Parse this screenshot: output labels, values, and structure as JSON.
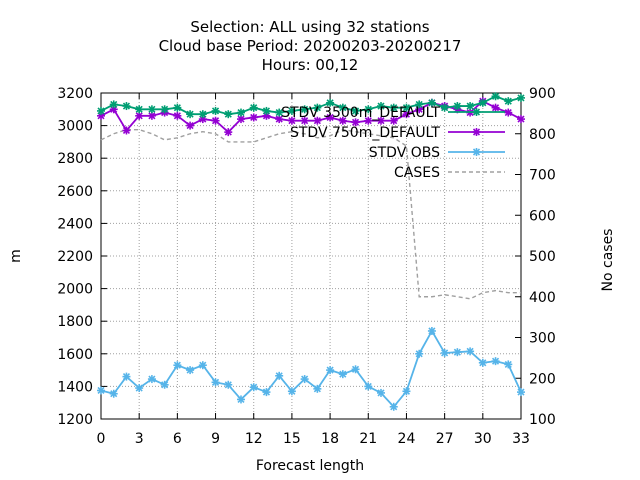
{
  "chart_data": {
    "type": "line",
    "title_lines": [
      "Selection: ALL using    32 stations",
      "Cloud base   Period: 20200203-20200217",
      "Hours:  00,12"
    ],
    "xlabel": "Forecast length",
    "ylabel": "m",
    "y2label": "No cases",
    "xlim": [
      0,
      33
    ],
    "ylim": [
      1200,
      3200
    ],
    "y2lim": [
      100,
      900
    ],
    "xticks": [
      0,
      3,
      6,
      9,
      12,
      15,
      18,
      21,
      24,
      27,
      30,
      33
    ],
    "yticks": [
      1200,
      1400,
      1600,
      1800,
      2000,
      2200,
      2400,
      2600,
      2800,
      3000,
      3200
    ],
    "y2ticks": [
      100,
      200,
      300,
      400,
      500,
      600,
      700,
      800,
      900
    ],
    "grid": true,
    "legend_position": "top-right",
    "x": [
      0,
      1,
      2,
      3,
      4,
      5,
      6,
      7,
      8,
      9,
      10,
      11,
      12,
      13,
      14,
      15,
      16,
      17,
      18,
      19,
      20,
      21,
      22,
      23,
      24,
      25,
      26,
      27,
      28,
      29,
      30,
      31,
      32,
      33
    ],
    "series": [
      {
        "name": "STDV 3500m_DEFAULT",
        "color": "#009e73",
        "marker": "star",
        "axis": "y",
        "values": [
          3090,
          3130,
          3120,
          3100,
          3100,
          3100,
          3110,
          3070,
          3070,
          3090,
          3070,
          3080,
          3110,
          3090,
          3080,
          3090,
          3100,
          3110,
          3140,
          3110,
          3090,
          3100,
          3120,
          3110,
          3110,
          3130,
          3140,
          3110,
          3120,
          3120,
          3140,
          3180,
          3150,
          3170
        ]
      },
      {
        "name": "STDV 750m_DEFAULT",
        "color": "#9400d3",
        "marker": "star",
        "axis": "y",
        "values": [
          3060,
          3100,
          2970,
          3060,
          3060,
          3080,
          3060,
          3000,
          3040,
          3030,
          2960,
          3040,
          3050,
          3060,
          3040,
          3030,
          3030,
          3030,
          3050,
          3030,
          3020,
          3030,
          3030,
          3030,
          3070,
          3100,
          3140,
          3120,
          3100,
          3080,
          3150,
          3110,
          3080,
          3040
        ]
      },
      {
        "name": "STDV OBS",
        "color": "#56b4e9",
        "marker": "star",
        "axis": "y",
        "values": [
          1375,
          1355,
          1460,
          1390,
          1445,
          1410,
          1530,
          1500,
          1530,
          1425,
          1410,
          1320,
          1395,
          1365,
          1465,
          1370,
          1445,
          1385,
          1500,
          1475,
          1505,
          1400,
          1360,
          1275,
          1370,
          1600,
          1740,
          1605,
          1610,
          1615,
          1545,
          1555,
          1535,
          1365
        ]
      },
      {
        "name": "CASES",
        "color": "#a0a0a0",
        "marker": "none",
        "dashed": true,
        "axis": "y2",
        "values": [
          785,
          800,
          810,
          810,
          800,
          785,
          790,
          800,
          805,
          800,
          780,
          780,
          780,
          790,
          800,
          805,
          800,
          790,
          795,
          810,
          805,
          800,
          795,
          790,
          770,
          400,
          400,
          405,
          400,
          395,
          410,
          415,
          410,
          410
        ]
      }
    ]
  }
}
